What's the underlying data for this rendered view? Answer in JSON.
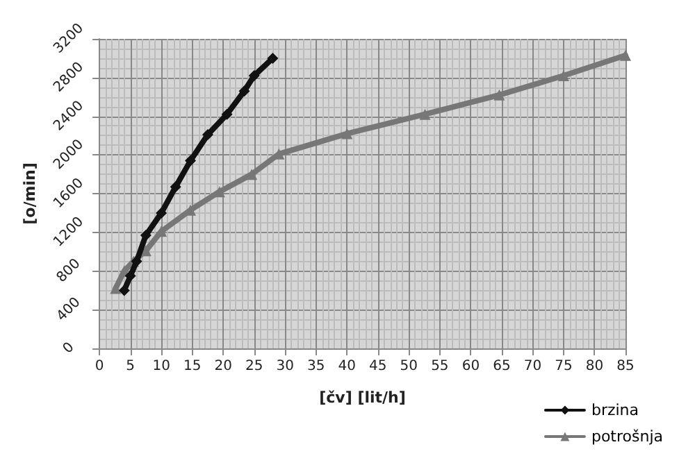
{
  "chart_data": {
    "type": "line",
    "xlabel": "[čv] [lit/h]",
    "ylabel": "[o/min]",
    "xlim": [
      0,
      85
    ],
    "xticks": [
      0,
      5,
      10,
      15,
      20,
      25,
      30,
      35,
      40,
      45,
      50,
      55,
      60,
      65,
      70,
      75,
      80,
      85
    ],
    "ylim": [
      0,
      3200
    ],
    "yticks": [
      0,
      400,
      800,
      1200,
      1600,
      2000,
      2400,
      2800,
      3200
    ],
    "grid": true,
    "legend": "bottom right",
    "line_style": "solid",
    "series": [
      {
        "name": "brzina",
        "color": "#111111",
        "marker": "diamond",
        "x": [
          4,
          5,
          6,
          7.5,
          10,
          12.3,
          14.7,
          17.5,
          20.6,
          23.4,
          25,
          28
        ],
        "values": [
          600,
          750,
          900,
          1170,
          1400,
          1670,
          1940,
          2210,
          2420,
          2660,
          2820,
          3000
        ]
      },
      {
        "name": "potrošnja",
        "color": "#777777",
        "marker": "triangle",
        "x": [
          2.6,
          4,
          5.5,
          7.5,
          10,
          14.7,
          19.4,
          24.6,
          29,
          40,
          52.6,
          64.6,
          75,
          85
        ],
        "values": [
          620,
          800,
          900,
          1010,
          1210,
          1430,
          1620,
          1800,
          2010,
          2220,
          2420,
          2620,
          2820,
          3030
        ]
      }
    ]
  }
}
